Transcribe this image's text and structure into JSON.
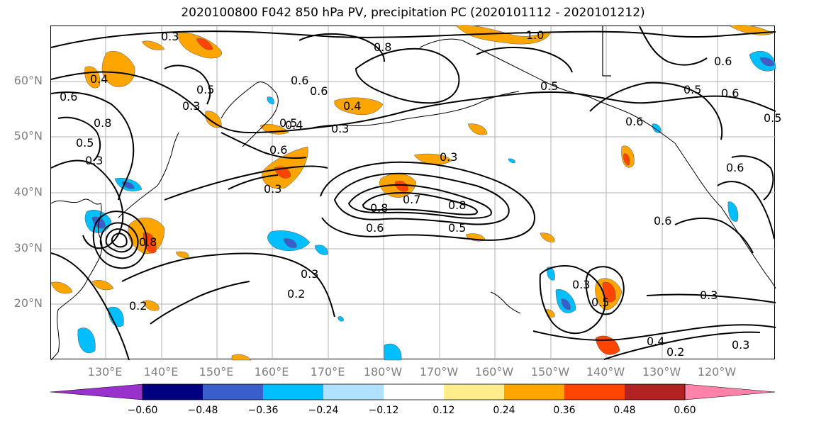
{
  "title": "2020100800 F042 850 hPa PV, precipitation PC (2020101112 - 2020101212)",
  "lat_labels": [
    "60°N",
    "50°N",
    "40°N",
    "30°N",
    "20°N"
  ],
  "lon_labels": [
    "130°E",
    "140°E",
    "150°E",
    "160°E",
    "170°E",
    "180°W",
    "170°W",
    "160°W",
    "150°W",
    "140°W",
    "130°W",
    "120°W"
  ],
  "contour_labels": [
    "0.3",
    "0.3",
    "0.4",
    "0.6",
    "0.8",
    "0.5",
    "0.3",
    "0.5",
    "0.4",
    "0.6",
    "0.8",
    "1.0",
    "0.5",
    "0.6",
    "0.6",
    "0.5",
    "0.6",
    "0.6",
    "0.5",
    "0.4",
    "0.3",
    "0.5",
    "0.6",
    "0.3",
    "0.3",
    "0.8",
    "0.7",
    "0.8",
    "0.6",
    "0.5",
    "0.6",
    "0.3",
    "0.2",
    "0.2",
    "0.3",
    "0.5",
    "0.3",
    "0.4",
    "0.2",
    "0.3",
    "0.8",
    "0.6"
  ],
  "colorbar": {
    "ticks": [
      "−0.60",
      "−0.48",
      "−0.36",
      "−0.24",
      "−0.12",
      "0.12",
      "0.24",
      "0.36",
      "0.48",
      "0.60"
    ],
    "colors": [
      "#9932cc",
      "#000080",
      "#3a5fcd",
      "#00bfff",
      "#b0e2ff",
      "#ffffff",
      "#ffec8b",
      "#ffa500",
      "#ff4500",
      "#b22222",
      "#ff82ab"
    ]
  },
  "chart_data": {
    "type": "heatmap",
    "title": "2020100800 F042 850 hPa PV, precipitation PC (2020101112 - 2020101212)",
    "xlabel": "",
    "ylabel": "",
    "lon_range": [
      "120°E",
      "115°W"
    ],
    "lat_range": [
      "10°N",
      "70°N"
    ],
    "x_ticks": [
      "130°E",
      "140°E",
      "150°E",
      "160°E",
      "170°E",
      "180°W",
      "170°W",
      "160°W",
      "150°W",
      "140°W",
      "130°W",
      "120°W"
    ],
    "y_ticks": [
      "20°N",
      "30°N",
      "40°N",
      "50°N",
      "60°N"
    ],
    "grid": true,
    "contour_levels": [
      0.2,
      0.3,
      0.4,
      0.5,
      0.6,
      0.7,
      0.8,
      1.0
    ],
    "colorbar_levels": [
      -0.6,
      -0.48,
      -0.36,
      -0.24,
      -0.12,
      0.12,
      0.24,
      0.36,
      0.48,
      0.6
    ],
    "colorbar_extend": "both"
  }
}
